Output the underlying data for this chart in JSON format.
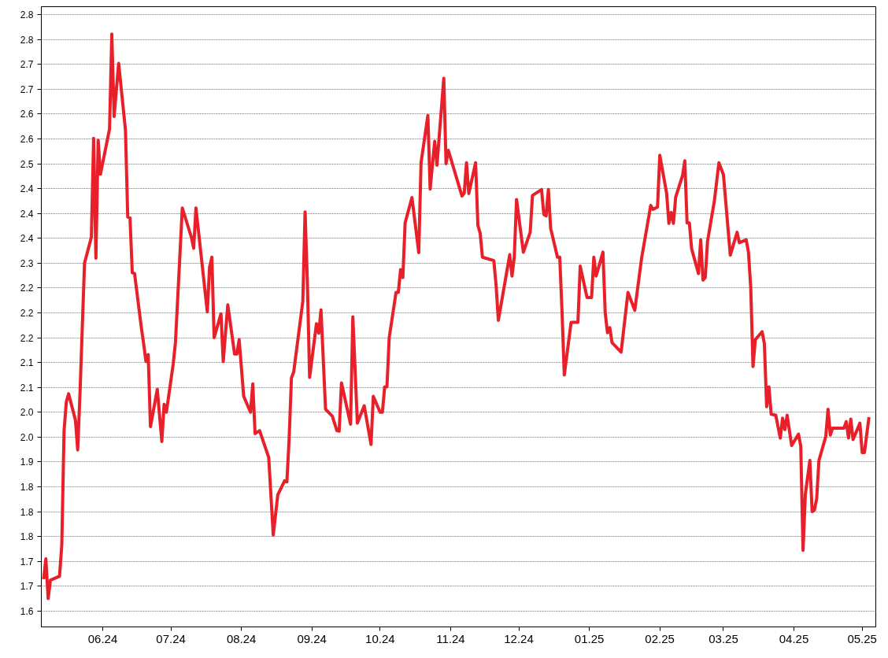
{
  "chart_data": {
    "type": "line",
    "grid": "y",
    "line_style": "solid",
    "marker": "none",
    "xlim": [
      "2024-05-05",
      "2025-05-07"
    ],
    "xticks": [
      {
        "value": "2024-06-01",
        "label": "06.24"
      },
      {
        "value": "2024-07-01",
        "label": "07.24"
      },
      {
        "value": "2024-08-01",
        "label": "08.24"
      },
      {
        "value": "2024-09-01",
        "label": "09.24"
      },
      {
        "value": "2024-10-01",
        "label": "10.24"
      },
      {
        "value": "2024-11-01",
        "label": "11.24"
      },
      {
        "value": "2024-12-01",
        "label": "12.24"
      },
      {
        "value": "2025-01-01",
        "label": "01.25"
      },
      {
        "value": "2025-02-01",
        "label": "02.25"
      },
      {
        "value": "2025-03-01",
        "label": "03.25"
      },
      {
        "value": "2025-04-01",
        "label": "04.25"
      },
      {
        "value": "2025-05-01",
        "label": "05.25"
      }
    ],
    "ylim": [
      1.568,
      2.816
    ],
    "yticks": [
      {
        "value": 1.6,
        "label": "1.6"
      },
      {
        "value": 1.65,
        "label": "1.7"
      },
      {
        "value": 1.7,
        "label": "1.7"
      },
      {
        "value": 1.75,
        "label": "1.8"
      },
      {
        "value": 1.8,
        "label": "1.8"
      },
      {
        "value": 1.85,
        "label": "1.8"
      },
      {
        "value": 1.9,
        "label": "1.9"
      },
      {
        "value": 1.95,
        "label": "2.0"
      },
      {
        "value": 2.0,
        "label": "2.0"
      },
      {
        "value": 2.05,
        "label": "2.1"
      },
      {
        "value": 2.1,
        "label": "2.1"
      },
      {
        "value": 2.15,
        "label": "2.2"
      },
      {
        "value": 2.2,
        "label": "2.2"
      },
      {
        "value": 2.25,
        "label": "2.2"
      },
      {
        "value": 2.3,
        "label": "2.3"
      },
      {
        "value": 2.35,
        "label": "2.4"
      },
      {
        "value": 2.4,
        "label": "2.4"
      },
      {
        "value": 2.45,
        "label": "2.4"
      },
      {
        "value": 2.5,
        "label": "2.5"
      },
      {
        "value": 2.55,
        "label": "2.6"
      },
      {
        "value": 2.6,
        "label": "2.6"
      },
      {
        "value": 2.65,
        "label": "2.7"
      },
      {
        "value": 2.7,
        "label": "2.7"
      },
      {
        "value": 2.75,
        "label": "2.8"
      },
      {
        "value": 2.8,
        "label": "2.8"
      }
    ],
    "x": [
      "2024-05-06",
      "2024-05-07",
      "2024-05-08",
      "2024-05-09",
      "2024-05-13",
      "2024-05-14",
      "2024-05-15",
      "2024-05-16",
      "2024-05-17",
      "2024-05-20",
      "2024-05-21",
      "2024-05-22",
      "2024-05-24",
      "2024-05-27",
      "2024-05-28",
      "2024-05-29",
      "2024-05-30",
      "2024-05-31",
      "2024-06-04",
      "2024-06-05",
      "2024-06-06",
      "2024-06-08",
      "2024-06-11",
      "2024-06-12",
      "2024-06-13",
      "2024-06-14",
      "2024-06-15",
      "2024-06-18",
      "2024-06-19",
      "2024-06-20",
      "2024-06-21",
      "2024-06-22",
      "2024-06-25",
      "2024-06-27",
      "2024-06-28",
      "2024-06-29",
      "2024-07-02",
      "2024-07-03",
      "2024-07-06",
      "2024-07-10",
      "2024-07-11",
      "2024-07-12",
      "2024-07-17",
      "2024-07-18",
      "2024-07-19",
      "2024-07-20",
      "2024-07-23",
      "2024-07-24",
      "2024-07-26",
      "2024-07-29",
      "2024-07-30",
      "2024-07-31",
      "2024-08-02",
      "2024-08-05",
      "2024-08-06",
      "2024-08-07",
      "2024-08-09",
      "2024-08-13",
      "2024-08-15",
      "2024-08-17",
      "2024-08-20",
      "2024-08-21",
      "2024-08-22",
      "2024-08-23",
      "2024-08-24",
      "2024-08-28",
      "2024-08-29",
      "2024-08-30",
      "2024-08-31",
      "2024-09-03",
      "2024-09-04",
      "2024-09-05",
      "2024-09-07",
      "2024-09-10",
      "2024-09-12",
      "2024-09-13",
      "2024-09-14",
      "2024-09-18",
      "2024-09-19",
      "2024-09-21",
      "2024-09-24",
      "2024-09-27",
      "2024-09-28",
      "2024-10-01",
      "2024-10-02",
      "2024-10-03",
      "2024-10-04",
      "2024-10-05",
      "2024-10-08",
      "2024-10-09",
      "2024-10-10",
      "2024-10-11",
      "2024-10-12",
      "2024-10-15",
      "2024-10-18",
      "2024-10-19",
      "2024-10-22",
      "2024-10-23",
      "2024-10-25",
      "2024-10-26",
      "2024-10-29",
      "2024-10-30",
      "2024-10-31",
      "2024-11-06",
      "2024-11-07",
      "2024-11-08",
      "2024-11-09",
      "2024-11-12",
      "2024-11-13",
      "2024-11-14",
      "2024-11-15",
      "2024-11-20",
      "2024-11-21",
      "2024-11-22",
      "2024-11-27",
      "2024-11-28",
      "2024-11-29",
      "2024-11-30",
      "2024-12-03",
      "2024-12-06",
      "2024-12-07",
      "2024-12-11",
      "2024-12-12",
      "2024-12-13",
      "2024-12-14",
      "2024-12-15",
      "2024-12-18",
      "2024-12-19",
      "2024-12-20",
      "2024-12-21",
      "2024-12-24",
      "2024-12-27",
      "2024-12-28",
      "2024-12-31",
      "2025-01-02",
      "2025-01-03",
      "2025-01-04",
      "2025-01-07",
      "2025-01-08",
      "2025-01-09",
      "2025-01-10",
      "2025-01-11",
      "2025-01-15",
      "2025-01-18",
      "2025-01-21",
      "2025-01-24",
      "2025-01-28",
      "2025-01-29",
      "2025-01-31",
      "2025-02-01",
      "2025-02-04",
      "2025-02-05",
      "2025-02-06",
      "2025-02-07",
      "2025-02-08",
      "2025-02-11",
      "2025-02-12",
      "2025-02-13",
      "2025-02-14",
      "2025-02-15",
      "2025-02-18",
      "2025-02-19",
      "2025-02-20",
      "2025-02-21",
      "2025-02-22",
      "2025-02-25",
      "2025-02-27",
      "2025-03-01",
      "2025-03-04",
      "2025-03-07",
      "2025-03-08",
      "2025-03-11",
      "2025-03-12",
      "2025-03-13",
      "2025-03-14",
      "2025-03-15",
      "2025-03-18",
      "2025-03-19",
      "2025-03-20",
      "2025-03-21",
      "2025-03-22",
      "2025-03-24",
      "2025-03-26",
      "2025-03-27",
      "2025-03-28",
      "2025-03-29",
      "2025-03-31",
      "2025-04-03",
      "2025-04-04",
      "2025-04-05",
      "2025-04-06",
      "2025-04-08",
      "2025-04-09",
      "2025-04-10",
      "2025-04-11",
      "2025-04-12",
      "2025-04-15",
      "2025-04-16",
      "2025-04-17",
      "2025-04-18",
      "2025-04-23",
      "2025-04-24",
      "2025-04-25",
      "2025-04-26",
      "2025-04-27",
      "2025-04-30",
      "2025-05-01",
      "2025-05-02",
      "2025-05-04"
    ],
    "series": [
      {
        "color": "#e8202a",
        "values": [
          1.664,
          1.705,
          1.625,
          1.662,
          1.67,
          1.733,
          1.963,
          2.021,
          2.037,
          1.984,
          1.924,
          2.037,
          2.3,
          2.352,
          2.551,
          2.31,
          2.547,
          2.479,
          2.57,
          2.761,
          2.595,
          2.702,
          2.568,
          2.393,
          2.391,
          2.281,
          2.279,
          2.17,
          2.138,
          2.102,
          2.116,
          1.971,
          2.046,
          1.941,
          2.016,
          2.0,
          2.097,
          2.141,
          2.411,
          2.352,
          2.33,
          2.411,
          2.202,
          2.292,
          2.312,
          2.15,
          2.198,
          2.102,
          2.216,
          2.117,
          2.117,
          2.146,
          2.032,
          2.0,
          2.057,
          1.957,
          1.963,
          1.909,
          1.753,
          1.834,
          1.862,
          1.86,
          1.948,
          2.069,
          2.081,
          2.223,
          2.403,
          2.263,
          2.07,
          2.178,
          2.159,
          2.206,
          2.006,
          1.992,
          1.963,
          1.962,
          2.059,
          1.976,
          2.192,
          1.978,
          2.013,
          1.935,
          2.032,
          2.0,
          2.0,
          2.051,
          2.051,
          2.15,
          2.241,
          2.241,
          2.287,
          2.271,
          2.381,
          2.432,
          2.321,
          2.502,
          2.597,
          2.449,
          2.545,
          2.497,
          2.672,
          2.5,
          2.527,
          2.435,
          2.441,
          2.502,
          2.44,
          2.502,
          2.376,
          2.36,
          2.312,
          2.305,
          2.256,
          2.185,
          2.317,
          2.274,
          2.312,
          2.428,
          2.322,
          2.362,
          2.436,
          2.448,
          2.398,
          2.395,
          2.448,
          2.37,
          2.312,
          2.312,
          2.203,
          2.075,
          2.181,
          2.181,
          2.294,
          2.231,
          2.231,
          2.312,
          2.274,
          2.322,
          2.2,
          2.16,
          2.17,
          2.14,
          2.121,
          2.241,
          2.205,
          2.31,
          2.416,
          2.408,
          2.413,
          2.517,
          2.441,
          2.38,
          2.402,
          2.38,
          2.433,
          2.476,
          2.506,
          2.381,
          2.381,
          2.329,
          2.279,
          2.347,
          2.266,
          2.271,
          2.344,
          2.425,
          2.502,
          2.478,
          2.316,
          2.362,
          2.341,
          2.347,
          2.322,
          2.251,
          2.092,
          2.146,
          2.162,
          2.138,
          2.011,
          2.051,
          1.996,
          1.994,
          1.948,
          1.988,
          1.965,
          1.994,
          1.933,
          1.956,
          1.932,
          1.722,
          1.834,
          1.903,
          1.8,
          1.803,
          1.826,
          1.903,
          1.951,
          2.006,
          1.954,
          1.968,
          1.968,
          1.981,
          1.948,
          1.986,
          1.945,
          1.978,
          1.919,
          1.919,
          1.99
        ]
      }
    ]
  }
}
